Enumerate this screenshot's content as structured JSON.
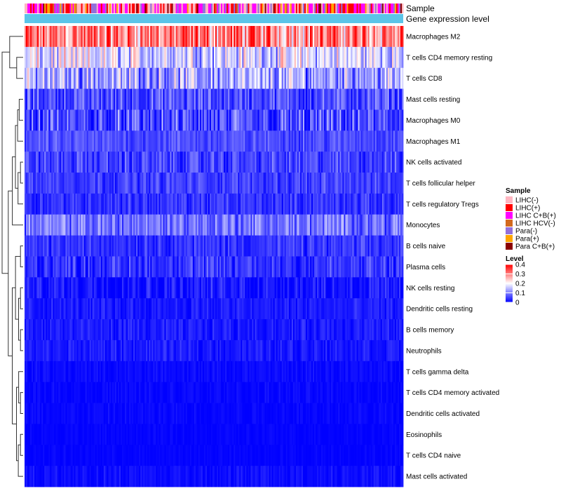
{
  "chart_data": {
    "type": "heatmap",
    "annotation_tracks": [
      "Sample",
      "Gene expression level"
    ],
    "rows": [
      {
        "label": "Macrophages M2",
        "mean": 0.3,
        "spread": 0.1
      },
      {
        "label": "T cells CD4 memory resting",
        "mean": 0.17,
        "spread": 0.08
      },
      {
        "label": "T cells CD8",
        "mean": 0.13,
        "spread": 0.08
      },
      {
        "label": "Mast cells resting",
        "mean": 0.06,
        "spread": 0.05
      },
      {
        "label": "Macrophages M0",
        "mean": 0.05,
        "spread": 0.07
      },
      {
        "label": "Macrophages M1",
        "mean": 0.06,
        "spread": 0.03
      },
      {
        "label": "NK cells activated",
        "mean": 0.05,
        "spread": 0.04
      },
      {
        "label": "T cells follicular helper",
        "mean": 0.05,
        "spread": 0.03
      },
      {
        "label": "T cells regulatory  Tregs",
        "mean": 0.04,
        "spread": 0.03
      },
      {
        "label": "Monocytes",
        "mean": 0.09,
        "spread": 0.05
      },
      {
        "label": "B cells naive",
        "mean": 0.04,
        "spread": 0.03
      },
      {
        "label": "Plasma cells",
        "mean": 0.04,
        "spread": 0.04
      },
      {
        "label": "NK cells resting",
        "mean": 0.02,
        "spread": 0.03
      },
      {
        "label": "Dendritic cells resting",
        "mean": 0.02,
        "spread": 0.02
      },
      {
        "label": "B cells memory",
        "mean": 0.02,
        "spread": 0.02
      },
      {
        "label": "Neutrophils",
        "mean": 0.02,
        "spread": 0.02
      },
      {
        "label": "T cells gamma delta",
        "mean": 0.008,
        "spread": 0.01
      },
      {
        "label": "T cells CD4 memory activated",
        "mean": 0.005,
        "spread": 0.01
      },
      {
        "label": "Dendritic cells activated",
        "mean": 0.005,
        "spread": 0.01
      },
      {
        "label": "Eosinophils",
        "mean": 0.003,
        "spread": 0.006
      },
      {
        "label": "T cells CD4 naive",
        "mean": 0.003,
        "spread": 0.006
      },
      {
        "label": "Mast cells activated",
        "mean": 0.01,
        "spread": 0.015
      }
    ],
    "n_columns": 268,
    "sample_legend": {
      "title": "Sample",
      "items": [
        {
          "label": "LIHC(-)",
          "color": "#FFB6C1"
        },
        {
          "label": "LIHC(+)",
          "color": "#FF0000"
        },
        {
          "label": "LIHC C+B(+)",
          "color": "#FF00FF"
        },
        {
          "label": "LIHC HCV(-)",
          "color": "#D2691E"
        },
        {
          "label": "Para(-)",
          "color": "#9370DB"
        },
        {
          "label": "Para(+)",
          "color": "#FFA500"
        },
        {
          "label": "Para C+B(+)",
          "color": "#8B0000"
        }
      ]
    },
    "level_legend": {
      "title": "Level",
      "ticks": [
        "0.4",
        "0.3",
        "0.2",
        "0.1",
        "0"
      ],
      "tick_values": [
        0.4,
        0.3,
        0.2,
        0.1,
        0
      ],
      "range": [
        0,
        0.4
      ],
      "colors": [
        "#0000FF",
        "#FFFFFF",
        "#FF0000"
      ]
    },
    "gene_expression_color": "#5BC4E8"
  }
}
